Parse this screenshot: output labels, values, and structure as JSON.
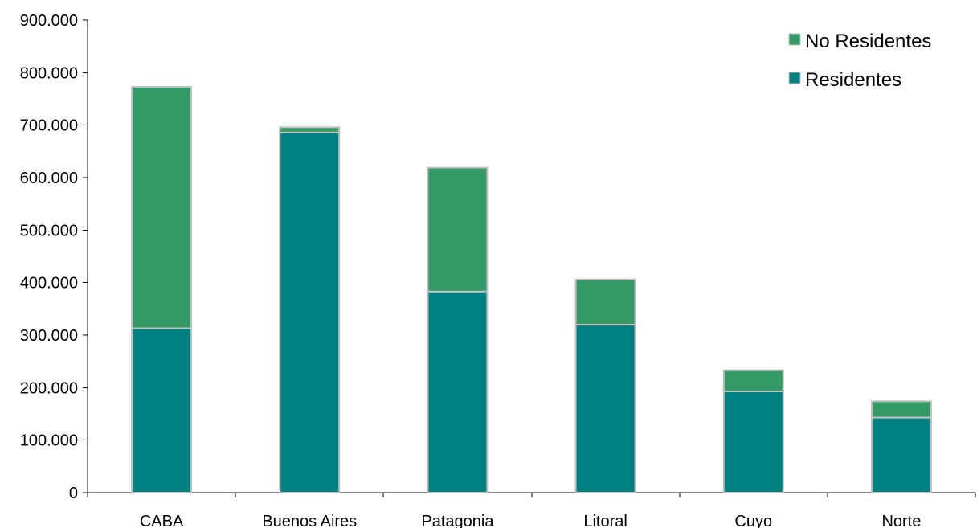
{
  "chart_data": {
    "type": "bar",
    "stacked": true,
    "categories": [
      "CABA",
      "Buenos Aires",
      "Patagonia",
      "Litoral",
      "Cuyo",
      "Norte"
    ],
    "series": [
      {
        "name": "Residentes",
        "color": "#008080",
        "values": [
          313000,
          686000,
          383000,
          320000,
          193000,
          143000
        ]
      },
      {
        "name": "No Residentes",
        "color": "#339966",
        "values": [
          460000,
          10000,
          236000,
          86000,
          40000,
          31000
        ]
      }
    ],
    "yticks": [
      "0",
      "100.000",
      "200.000",
      "300.000",
      "400.000",
      "500.000",
      "600.000",
      "700.000",
      "800.000",
      "900.000"
    ],
    "ylim": [
      0,
      900000
    ],
    "title": "",
    "xlabel": "",
    "ylabel": "",
    "legend": {
      "position": "top-right",
      "entries": [
        "No Residentes",
        "Residentes"
      ]
    },
    "grid": false
  }
}
